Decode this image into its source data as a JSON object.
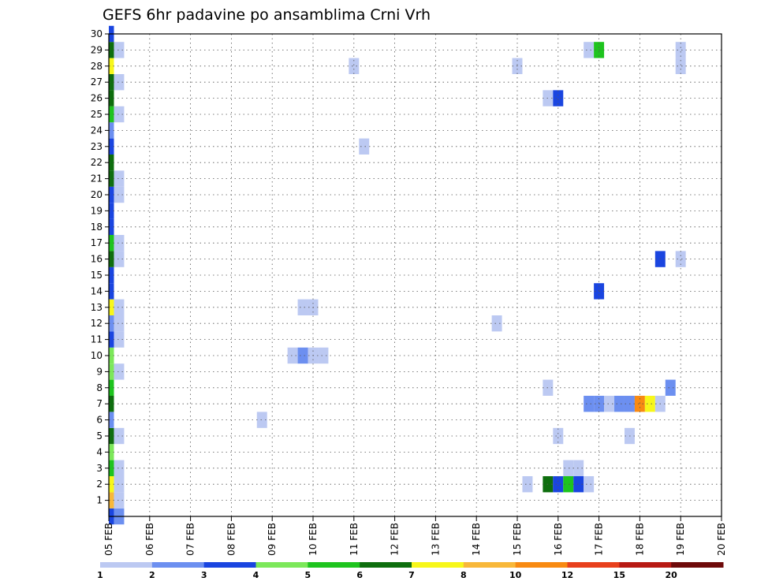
{
  "chart_data": {
    "type": "heatmap",
    "title": "GEFS 6hr padavine po ansamblima Crni Vrh",
    "x_ticks": [
      "05 FEB",
      "06 FEB",
      "07 FEB",
      "08 FEB",
      "09 FEB",
      "10 FEB",
      "11 FEB",
      "12 FEB",
      "13 FEB",
      "14 FEB",
      "15 FEB",
      "16 FEB",
      "17 FEB",
      "18 FEB",
      "19 FEB",
      "20 FEB"
    ],
    "y_ticks": [
      "1",
      "2",
      "3",
      "4",
      "5",
      "6",
      "7",
      "8",
      "9",
      "10",
      "11",
      "12",
      "13",
      "14",
      "15",
      "16",
      "17",
      "18",
      "19",
      "20",
      "21",
      "22",
      "23",
      "24",
      "25",
      "26",
      "27",
      "28",
      "29",
      "30"
    ],
    "xlim": [
      0,
      60
    ],
    "ylim": [
      0,
      30
    ],
    "x_unit": "6-hour steps after 05 FEB 00z",
    "grid": true,
    "colorbar": {
      "labels": [
        "1",
        "2",
        "3",
        "4",
        "5",
        "6",
        "7",
        "8",
        "10",
        "12",
        "15",
        "20"
      ],
      "colors": [
        "#bcc9f2",
        "#6c8ff0",
        "#1a45e0",
        "#7ce85a",
        "#1ec41e",
        "#0e6e0e",
        "#f7f71a",
        "#f8b83a",
        "#f88a12",
        "#e8401c",
        "#b81a14",
        "#6e0a0a"
      ]
    },
    "cells": [
      {
        "x": 0,
        "y": 0,
        "v": "#1a45e0"
      },
      {
        "x": 0,
        "y": 1,
        "v": "#f8b83a"
      },
      {
        "x": 0,
        "y": 2,
        "v": "#f7f71a"
      },
      {
        "x": 0,
        "y": 3,
        "v": "#1ec41e"
      },
      {
        "x": 0,
        "y": 4,
        "v": "#7ce85a"
      },
      {
        "x": 0,
        "y": 5,
        "v": "#0e6e0e"
      },
      {
        "x": 0,
        "y": 6,
        "v": "#6c8ff0"
      },
      {
        "x": 0,
        "y": 7,
        "v": "#0e6e0e"
      },
      {
        "x": 0,
        "y": 8,
        "v": "#1ec41e"
      },
      {
        "x": 0,
        "y": 9,
        "v": "#7ce85a"
      },
      {
        "x": 0,
        "y": 10,
        "v": "#7ce85a"
      },
      {
        "x": 0,
        "y": 11,
        "v": "#1a45e0"
      },
      {
        "x": 0,
        "y": 12,
        "v": "#6c8ff0"
      },
      {
        "x": 0,
        "y": 13,
        "v": "#f7f71a"
      },
      {
        "x": 0,
        "y": 14,
        "v": "#1a45e0"
      },
      {
        "x": 0,
        "y": 15,
        "v": "#1a45e0"
      },
      {
        "x": 0,
        "y": 16,
        "v": "#0e6e0e"
      },
      {
        "x": 0,
        "y": 17,
        "v": "#1ec41e"
      },
      {
        "x": 0,
        "y": 18,
        "v": "#1a45e0"
      },
      {
        "x": 0,
        "y": 19,
        "v": "#1a45e0"
      },
      {
        "x": 0,
        "y": 20,
        "v": "#1a45e0"
      },
      {
        "x": 0,
        "y": 21,
        "v": "#0e6e0e"
      },
      {
        "x": 0,
        "y": 22,
        "v": "#0e6e0e"
      },
      {
        "x": 0,
        "y": 23,
        "v": "#1a45e0"
      },
      {
        "x": 0,
        "y": 24,
        "v": "#6c8ff0"
      },
      {
        "x": 0,
        "y": 25,
        "v": "#1ec41e"
      },
      {
        "x": 0,
        "y": 26,
        "v": "#0e6e0e"
      },
      {
        "x": 0,
        "y": 27,
        "v": "#0e6e0e"
      },
      {
        "x": 0,
        "y": 28,
        "v": "#f7f71a"
      },
      {
        "x": 0,
        "y": 29,
        "v": "#0e6e0e"
      },
      {
        "x": 0,
        "y": 30,
        "v": "#1a45e0"
      },
      {
        "x": 1,
        "y": 0,
        "v": "#6c8ff0"
      },
      {
        "x": 1,
        "y": 1,
        "v": "#bcc9f2"
      },
      {
        "x": 1,
        "y": 2,
        "v": "#bcc9f2"
      },
      {
        "x": 1,
        "y": 3,
        "v": "#bcc9f2"
      },
      {
        "x": 1,
        "y": 5,
        "v": "#bcc9f2"
      },
      {
        "x": 1,
        "y": 9,
        "v": "#bcc9f2"
      },
      {
        "x": 1,
        "y": 11,
        "v": "#bcc9f2"
      },
      {
        "x": 1,
        "y": 12,
        "v": "#bcc9f2"
      },
      {
        "x": 1,
        "y": 13,
        "v": "#bcc9f2"
      },
      {
        "x": 1,
        "y": 16,
        "v": "#bcc9f2"
      },
      {
        "x": 1,
        "y": 17,
        "v": "#bcc9f2"
      },
      {
        "x": 1,
        "y": 20,
        "v": "#bcc9f2"
      },
      {
        "x": 1,
        "y": 21,
        "v": "#bcc9f2"
      },
      {
        "x": 1,
        "y": 25,
        "v": "#bcc9f2"
      },
      {
        "x": 1,
        "y": 27,
        "v": "#bcc9f2"
      },
      {
        "x": 1,
        "y": 29,
        "v": "#bcc9f2"
      },
      {
        "x": 15,
        "y": 6,
        "v": "#bcc9f2"
      },
      {
        "x": 18,
        "y": 10,
        "v": "#bcc9f2"
      },
      {
        "x": 19,
        "y": 10,
        "v": "#6c8ff0"
      },
      {
        "x": 20,
        "y": 10,
        "v": "#bcc9f2"
      },
      {
        "x": 21,
        "y": 10,
        "v": "#bcc9f2"
      },
      {
        "x": 19,
        "y": 13,
        "v": "#bcc9f2"
      },
      {
        "x": 20,
        "y": 13,
        "v": "#bcc9f2"
      },
      {
        "x": 24,
        "y": 28,
        "v": "#bcc9f2"
      },
      {
        "x": 25,
        "y": 23,
        "v": "#bcc9f2"
      },
      {
        "x": 38,
        "y": 12,
        "v": "#bcc9f2"
      },
      {
        "x": 40,
        "y": 28,
        "v": "#bcc9f2"
      },
      {
        "x": 41,
        "y": 2,
        "v": "#bcc9f2"
      },
      {
        "x": 43,
        "y": 2,
        "v": "#0e6e0e"
      },
      {
        "x": 44,
        "y": 2,
        "v": "#1a45e0"
      },
      {
        "x": 45,
        "y": 2,
        "v": "#1ec41e"
      },
      {
        "x": 46,
        "y": 2,
        "v": "#1a45e0"
      },
      {
        "x": 47,
        "y": 2,
        "v": "#bcc9f2"
      },
      {
        "x": 45,
        "y": 3,
        "v": "#bcc9f2"
      },
      {
        "x": 46,
        "y": 3,
        "v": "#bcc9f2"
      },
      {
        "x": 44,
        "y": 5,
        "v": "#bcc9f2"
      },
      {
        "x": 43,
        "y": 8,
        "v": "#bcc9f2"
      },
      {
        "x": 43,
        "y": 26,
        "v": "#bcc9f2"
      },
      {
        "x": 44,
        "y": 26,
        "v": "#1a45e0"
      },
      {
        "x": 47,
        "y": 29,
        "v": "#bcc9f2"
      },
      {
        "x": 48,
        "y": 29,
        "v": "#1ec41e"
      },
      {
        "x": 48,
        "y": 14,
        "v": "#1a45e0"
      },
      {
        "x": 47,
        "y": 7,
        "v": "#6c8ff0"
      },
      {
        "x": 48,
        "y": 7,
        "v": "#6c8ff0"
      },
      {
        "x": 49,
        "y": 7,
        "v": "#bcc9f2"
      },
      {
        "x": 50,
        "y": 7,
        "v": "#6c8ff0"
      },
      {
        "x": 51,
        "y": 7,
        "v": "#6c8ff0"
      },
      {
        "x": 52,
        "y": 7,
        "v": "#f88a12"
      },
      {
        "x": 53,
        "y": 7,
        "v": "#f7f71a"
      },
      {
        "x": 54,
        "y": 7,
        "v": "#bcc9f2"
      },
      {
        "x": 51,
        "y": 5,
        "v": "#bcc9f2"
      },
      {
        "x": 54,
        "y": 16,
        "v": "#1a45e0"
      },
      {
        "x": 55,
        "y": 8,
        "v": "#6c8ff0"
      },
      {
        "x": 56,
        "y": 16,
        "v": "#bcc9f2"
      },
      {
        "x": 56,
        "y": 28,
        "v": "#bcc9f2"
      },
      {
        "x": 56,
        "y": 29,
        "v": "#bcc9f2"
      }
    ]
  }
}
